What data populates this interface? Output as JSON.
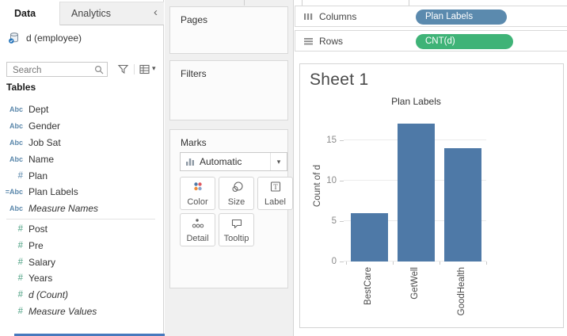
{
  "left_panel": {
    "tab_data": "Data",
    "tab_analytics": "Analytics",
    "collapse_glyph": "‹",
    "datasource_name": "d (employee)",
    "search_placeholder": "Search",
    "tables_header": "Tables",
    "fields": [
      {
        "icon": "Abc",
        "label": "Dept",
        "group": "dimension",
        "italic": false
      },
      {
        "icon": "Abc",
        "label": "Gender",
        "group": "dimension",
        "italic": false
      },
      {
        "icon": "Abc",
        "label": "Job Sat",
        "group": "dimension",
        "italic": false
      },
      {
        "icon": "Abc",
        "label": "Name",
        "group": "dimension",
        "italic": false
      },
      {
        "icon": "#",
        "label": "Plan",
        "group": "dimension",
        "italic": false
      },
      {
        "icon": "=Abc",
        "label": "Plan Labels",
        "group": "dimension",
        "italic": false
      },
      {
        "icon": "Abc",
        "label": "Measure Names",
        "group": "dimension",
        "italic": true
      },
      {
        "icon": "#",
        "label": "Post",
        "group": "measure",
        "italic": false
      },
      {
        "icon": "#",
        "label": "Pre",
        "group": "measure",
        "italic": false
      },
      {
        "icon": "#",
        "label": "Salary",
        "group": "measure",
        "italic": false
      },
      {
        "icon": "#",
        "label": "Years",
        "group": "measure",
        "italic": false
      },
      {
        "icon": "#",
        "label": "d (Count)",
        "group": "measure",
        "italic": true
      },
      {
        "icon": "#",
        "label": "Measure Values",
        "group": "measure",
        "italic": true
      }
    ]
  },
  "cards": {
    "pages_label": "Pages",
    "filters_label": "Filters",
    "marks_label": "Marks",
    "mark_type": "Automatic",
    "dropdown_caret": "▾",
    "buttons": {
      "color": "Color",
      "size": "Size",
      "label": "Label",
      "detail": "Detail",
      "tooltip": "Tooltip"
    }
  },
  "shelves": {
    "columns_label": "Columns",
    "columns_pill": "Plan Labels",
    "rows_label": "Rows",
    "rows_pill": "CNT(d)"
  },
  "sheet": {
    "title": "Sheet 1"
  },
  "colors": {
    "dimension_pill": "#5b8aae",
    "measure_pill": "#3fb377",
    "bar": "#4e79a7",
    "dimension_icon": "#5a87ab",
    "measure_icon": "#4da183",
    "bottom_strip": "#4779bd"
  },
  "chart_data": {
    "type": "bar",
    "title": "Plan Labels",
    "categories": [
      "BestCare",
      "GetWell",
      "GoodHealth"
    ],
    "values": [
      6,
      17,
      14
    ],
    "xlabel": "",
    "ylabel": "Count of d",
    "ylim": [
      0,
      18
    ],
    "yticks": [
      0,
      5,
      10,
      15
    ],
    "grid": true,
    "legend": false,
    "bar_color": "#4e79a7"
  }
}
